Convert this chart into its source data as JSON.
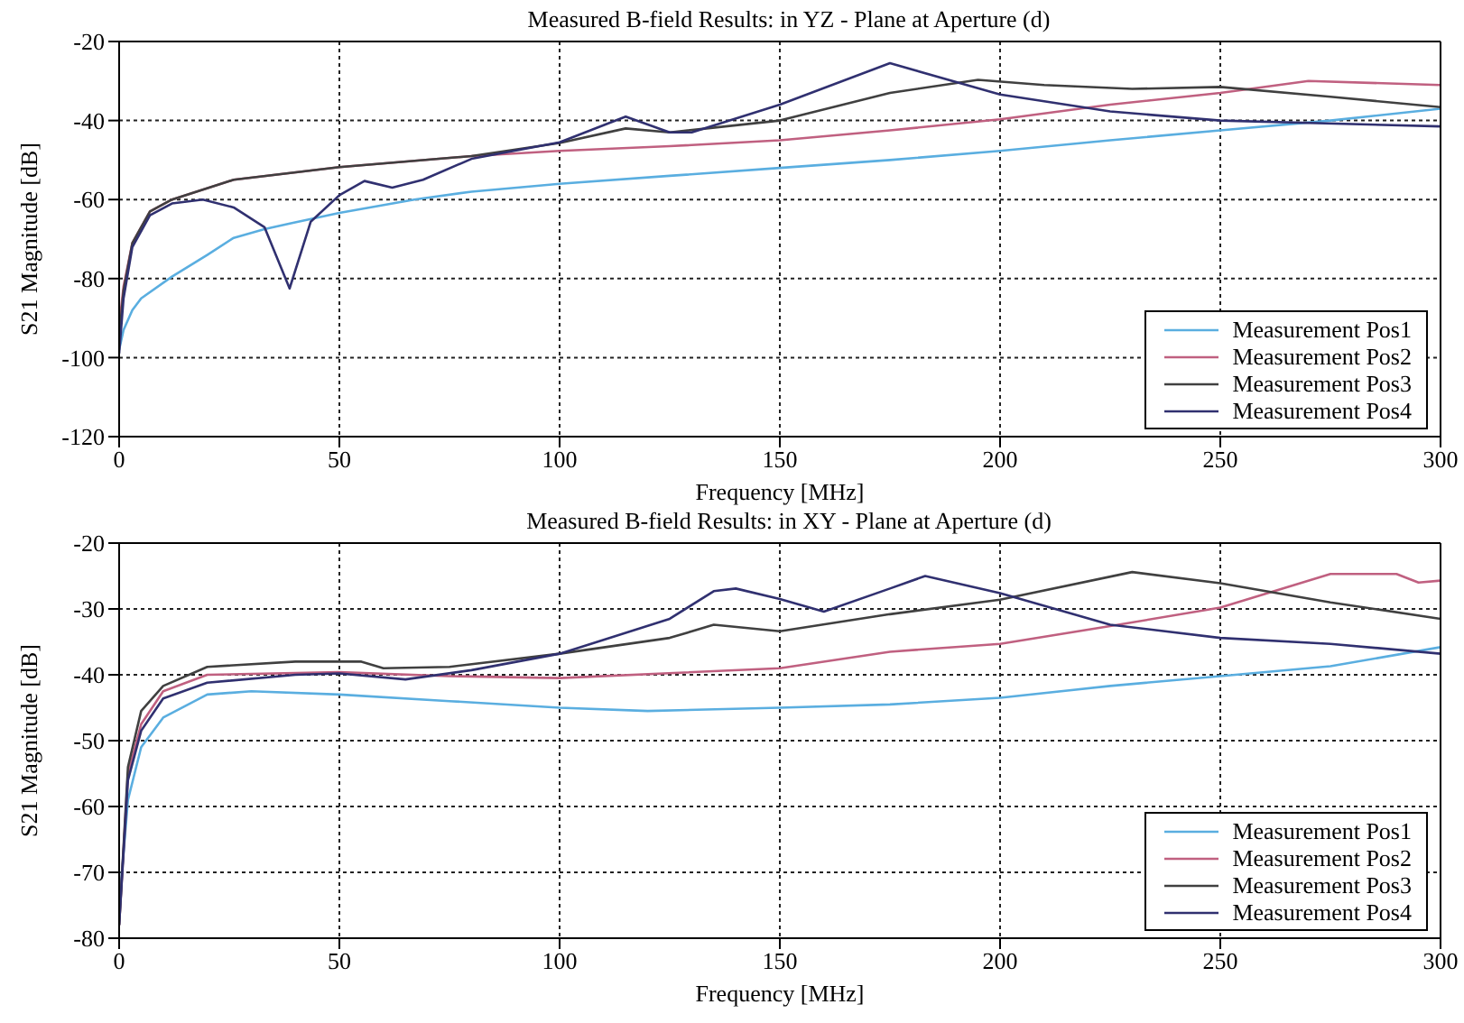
{
  "chart_data": [
    {
      "type": "line",
      "title": "Measured B-field Results: in YZ - Plane at Aperture (d)",
      "xlabel": "Frequency [MHz]",
      "ylabel": "S21 Magnitude [dB]",
      "xlim": [
        0,
        300
      ],
      "xticks": [
        0,
        50,
        100,
        150,
        200,
        250,
        300
      ],
      "ylim": [
        -120,
        -20
      ],
      "yticks": [
        -120,
        -100,
        -80,
        -60,
        -40,
        -20
      ],
      "grid": true,
      "legend": "bottom right",
      "series": [
        {
          "name": "Measurement Pos1",
          "color": "#5aaee0",
          "x": [
            0,
            1,
            3,
            5,
            12,
            20,
            26,
            33,
            39,
            50,
            67,
            80,
            100,
            125,
            150,
            175,
            200,
            225,
            250,
            275,
            300
          ],
          "values": [
            -98,
            -93,
            -88,
            -85,
            -79.5,
            -74,
            -69.7,
            -67.5,
            -66,
            -63.4,
            -60,
            -58,
            -56,
            -54,
            -52,
            -50,
            -47.7,
            -45,
            -42.5,
            -40,
            -37
          ]
        },
        {
          "name": "Measurement Pos2",
          "color": "#c06080",
          "x": [
            0,
            1,
            3,
            7,
            12,
            26,
            50,
            80,
            100,
            125,
            150,
            175,
            200,
            225,
            250,
            270,
            300
          ],
          "values": [
            -92,
            -82,
            -71,
            -63,
            -60,
            -55,
            -51.8,
            -49,
            -47.7,
            -46.5,
            -45,
            -42.5,
            -39.7,
            -36,
            -33,
            -30,
            -31
          ]
        },
        {
          "name": "Measurement Pos3",
          "color": "#404040",
          "x": [
            0,
            1,
            3,
            7,
            12,
            26,
            50,
            80,
            100,
            115,
            125,
            150,
            175,
            195,
            210,
            230,
            250,
            275,
            300
          ],
          "values": [
            -95,
            -83,
            -71,
            -63,
            -60,
            -55,
            -51.8,
            -49,
            -45.7,
            -42,
            -43,
            -40,
            -33,
            -29.7,
            -31,
            -32,
            -31.5,
            -34,
            -36.6
          ]
        },
        {
          "name": "Measurement Pos4",
          "color": "#303070",
          "x": [
            0,
            1,
            3,
            7,
            12,
            19,
            26,
            33,
            38.7,
            43.5,
            50,
            55.7,
            62,
            69,
            80,
            100,
            115,
            125,
            130,
            150,
            175,
            200,
            225,
            250,
            300
          ],
          "values": [
            -99,
            -85,
            -72,
            -64,
            -61,
            -60,
            -62,
            -67,
            -82.5,
            -65.6,
            -58.9,
            -55.3,
            -57,
            -55,
            -49.7,
            -45.5,
            -39,
            -43,
            -43,
            -36,
            -25.5,
            -33.4,
            -37.7,
            -40,
            -41.5
          ]
        }
      ]
    },
    {
      "type": "line",
      "title": "Measured B-field Results: in XY - Plane at Aperture (d)",
      "xlabel": "Frequency [MHz]",
      "ylabel": "S21 Magnitude [dB]",
      "xlim": [
        0,
        300
      ],
      "xticks": [
        0,
        50,
        100,
        150,
        200,
        250,
        300
      ],
      "ylim": [
        -80,
        -20
      ],
      "yticks": [
        -80,
        -70,
        -60,
        -50,
        -40,
        -30,
        -20
      ],
      "grid": true,
      "legend": "bottom right",
      "series": [
        {
          "name": "Measurement Pos1",
          "color": "#5aaee0",
          "x": [
            0,
            2,
            5,
            10,
            20,
            30,
            50,
            75,
            100,
            120,
            150,
            175,
            200,
            225,
            250,
            275,
            300
          ],
          "values": [
            -75,
            -59,
            -51,
            -46.5,
            -43,
            -42.5,
            -43,
            -44,
            -45,
            -45.5,
            -45,
            -44.5,
            -43.5,
            -41.7,
            -40.2,
            -38.7,
            -35.8
          ]
        },
        {
          "name": "Measurement Pos2",
          "color": "#c06080",
          "x": [
            0,
            2,
            5,
            10,
            20,
            50,
            75,
            100,
            150,
            175,
            200,
            225,
            250,
            275,
            290,
            295,
            300
          ],
          "values": [
            -78,
            -55,
            -47.5,
            -42.5,
            -40,
            -39.6,
            -40.2,
            -40.5,
            -39,
            -36.5,
            -35.3,
            -32.6,
            -29.8,
            -24.7,
            -24.7,
            -26,
            -25.7
          ]
        },
        {
          "name": "Measurement Pos3",
          "color": "#404040",
          "x": [
            0,
            2,
            5,
            10,
            20,
            40,
            55,
            60,
            75,
            100,
            125,
            135,
            150,
            175,
            200,
            230,
            250,
            275,
            300
          ],
          "values": [
            -78,
            -54,
            -45.5,
            -41.7,
            -38.8,
            -38,
            -38,
            -39,
            -38.8,
            -36.8,
            -34.4,
            -32.4,
            -33.4,
            -30.8,
            -28.6,
            -24.4,
            -26.1,
            -29,
            -31.5
          ]
        },
        {
          "name": "Measurement Pos4",
          "color": "#303070",
          "x": [
            0,
            2,
            5,
            10,
            20,
            40,
            50,
            65,
            80,
            100,
            125,
            135,
            140,
            150,
            160,
            175,
            183,
            200,
            225,
            250,
            275,
            300
          ],
          "values": [
            -78,
            -56,
            -48.5,
            -43.6,
            -41.2,
            -40,
            -39.8,
            -40.7,
            -39.3,
            -36.8,
            -31.5,
            -27.3,
            -26.9,
            -28.5,
            -30.4,
            -26.9,
            -25,
            -27.6,
            -32.4,
            -34.4,
            -35.3,
            -36.8
          ]
        }
      ]
    }
  ]
}
